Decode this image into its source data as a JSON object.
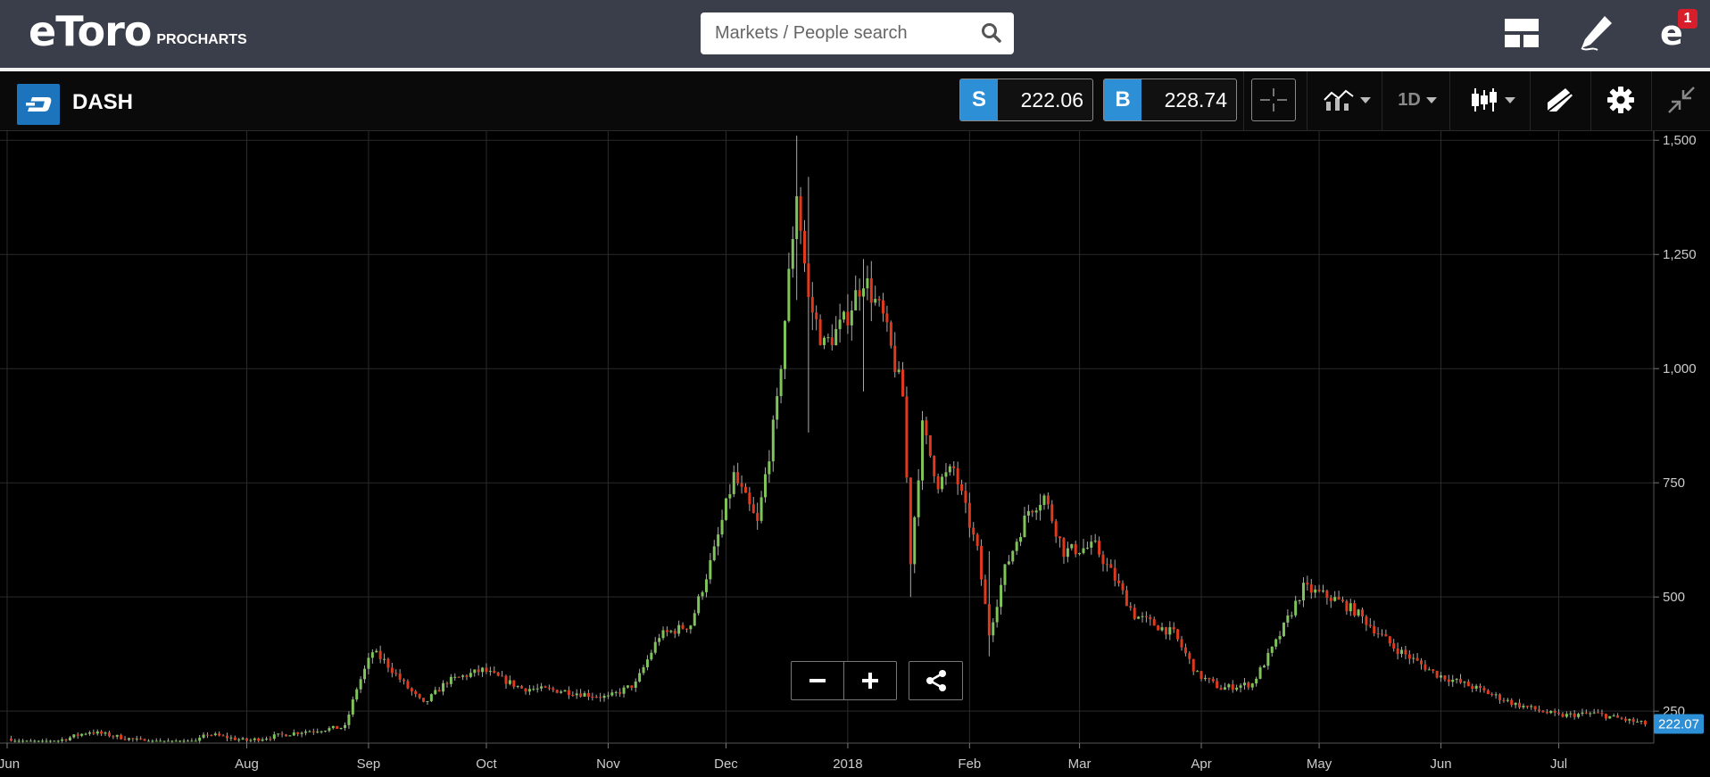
{
  "header": {
    "logo_text": "eToro",
    "logo_sub": "PROCHARTS",
    "search_placeholder": "Markets / People search",
    "notification_count": "1"
  },
  "instrument": {
    "name": "DASH",
    "sell_label": "S",
    "sell_price": "222.06",
    "buy_label": "B",
    "buy_price": "228.74",
    "timeframe": "1D"
  },
  "colors": {
    "up": "#7fc35a",
    "down": "#e03a1e",
    "accent": "#2d8fd5",
    "grid": "#2b2b2b"
  },
  "chart_data": {
    "type": "candlestick",
    "instrument": "DASH",
    "interval": "1D",
    "y_range": [
      180,
      1520
    ],
    "y_ticks": [
      250,
      500,
      750,
      1000,
      1250,
      1500
    ],
    "y_tick_labels": [
      "250",
      "500",
      "750",
      "1,000",
      "1,250",
      "1,500"
    ],
    "x_range": [
      "2017-06-01",
      "2018-07-27"
    ],
    "x_ticks": [
      {
        "date": "2017-06-01",
        "label": "Jun"
      },
      {
        "date": "2017-08-01",
        "label": "Aug"
      },
      {
        "date": "2017-09-01",
        "label": "Sep"
      },
      {
        "date": "2017-10-01",
        "label": "Oct"
      },
      {
        "date": "2017-11-01",
        "label": "Nov"
      },
      {
        "date": "2017-12-01",
        "label": "Dec"
      },
      {
        "date": "2018-01-01",
        "label": "2018"
      },
      {
        "date": "2018-02-01",
        "label": "Feb"
      },
      {
        "date": "2018-03-01",
        "label": "Mar"
      },
      {
        "date": "2018-04-01",
        "label": "Apr"
      },
      {
        "date": "2018-05-01",
        "label": "May"
      },
      {
        "date": "2018-06-01",
        "label": "Jun"
      },
      {
        "date": "2018-07-01",
        "label": "Jul"
      }
    ],
    "last_price_label": "222.07",
    "last_price": 222.07,
    "grid": true,
    "close_path": [
      [
        "2017-06-01",
        190
      ],
      [
        "2017-06-10",
        175
      ],
      [
        "2017-06-22",
        205
      ],
      [
        "2017-07-05",
        185
      ],
      [
        "2017-07-16",
        165
      ],
      [
        "2017-07-22",
        200
      ],
      [
        "2017-08-01",
        185
      ],
      [
        "2017-08-15",
        205
      ],
      [
        "2017-08-26",
        215
      ],
      [
        "2017-08-29",
        300
      ],
      [
        "2017-09-02",
        380
      ],
      [
        "2017-09-05",
        360
      ],
      [
        "2017-09-10",
        310
      ],
      [
        "2017-09-15",
        265
      ],
      [
        "2017-09-21",
        315
      ],
      [
        "2017-09-30",
        340
      ],
      [
        "2017-10-10",
        300
      ],
      [
        "2017-10-20",
        295
      ],
      [
        "2017-11-01",
        280
      ],
      [
        "2017-11-08",
        310
      ],
      [
        "2017-11-14",
        415
      ],
      [
        "2017-11-22",
        440
      ],
      [
        "2017-11-28",
        600
      ],
      [
        "2017-12-03",
        765
      ],
      [
        "2017-12-09",
        660
      ],
      [
        "2017-12-14",
        920
      ],
      [
        "2017-12-19",
        1390
      ],
      [
        "2017-12-22",
        1150
      ],
      [
        "2017-12-26",
        1050
      ],
      [
        "2017-12-31",
        1100
      ],
      [
        "2018-01-05",
        1200
      ],
      [
        "2018-01-10",
        1110
      ],
      [
        "2018-01-15",
        940
      ],
      [
        "2018-01-17",
        580
      ],
      [
        "2018-01-20",
        870
      ],
      [
        "2018-01-24",
        750
      ],
      [
        "2018-01-28",
        780
      ],
      [
        "2018-02-03",
        600
      ],
      [
        "2018-02-06",
        420
      ],
      [
        "2018-02-10",
        560
      ],
      [
        "2018-02-16",
        690
      ],
      [
        "2018-02-20",
        720
      ],
      [
        "2018-02-25",
        600
      ],
      [
        "2018-03-05",
        610
      ],
      [
        "2018-03-10",
        540
      ],
      [
        "2018-03-15",
        460
      ],
      [
        "2018-03-25",
        420
      ],
      [
        "2018-03-31",
        330
      ],
      [
        "2018-04-06",
        300
      ],
      [
        "2018-04-14",
        310
      ],
      [
        "2018-04-20",
        400
      ],
      [
        "2018-04-27",
        520
      ],
      [
        "2018-05-05",
        495
      ],
      [
        "2018-05-10",
        470
      ],
      [
        "2018-05-20",
        390
      ],
      [
        "2018-05-31",
        330
      ],
      [
        "2018-06-10",
        300
      ],
      [
        "2018-06-20",
        265
      ],
      [
        "2018-07-01",
        240
      ],
      [
        "2018-07-10",
        245
      ],
      [
        "2018-07-23",
        222
      ]
    ],
    "wick_spikes": [
      {
        "date": "2017-12-19",
        "high": 1510,
        "low": 1150
      },
      {
        "date": "2017-12-22",
        "high": 1420,
        "low": 860
      },
      {
        "date": "2018-01-05",
        "high": 1240,
        "low": 950
      },
      {
        "date": "2018-01-17",
        "high": 760,
        "low": 500
      },
      {
        "date": "2018-02-06",
        "high": 600,
        "low": 370
      }
    ]
  }
}
